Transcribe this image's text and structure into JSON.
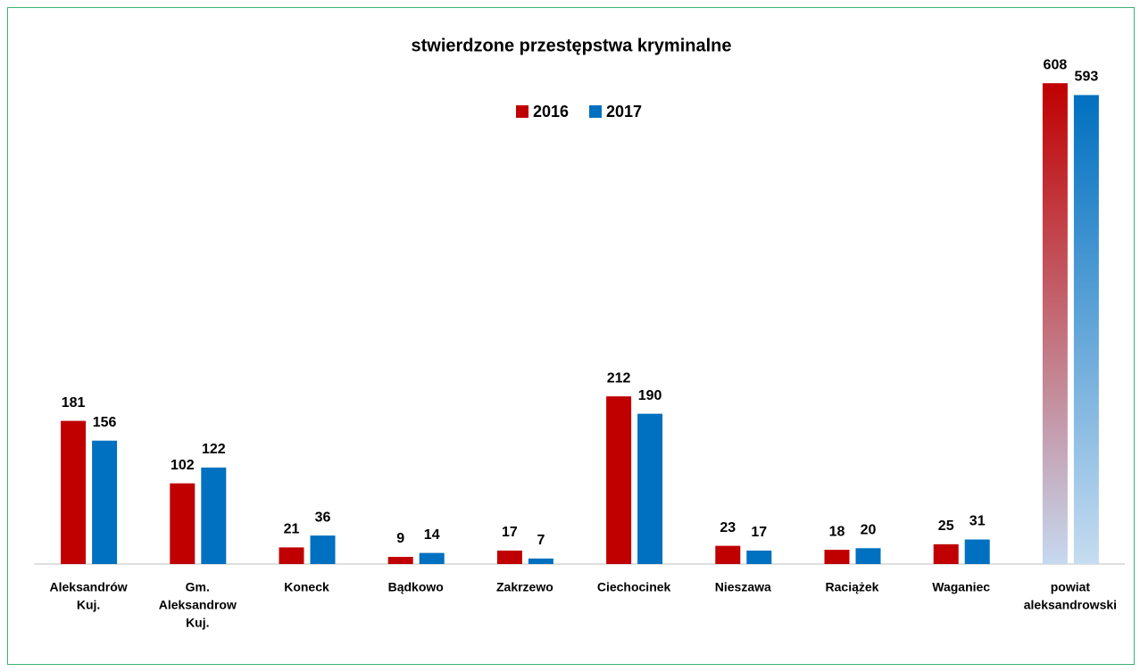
{
  "chart_data": {
    "type": "bar",
    "title": "stwierdzone przestępstwa kryminalne",
    "categories": [
      [
        "Aleksandrów",
        "Kuj."
      ],
      [
        "Gm.",
        "Aleksandrow",
        "Kuj."
      ],
      [
        "Koneck"
      ],
      [
        "Bądkowo"
      ],
      [
        "Zakrzewo"
      ],
      [
        "Ciechocinek"
      ],
      [
        "Nieszawa"
      ],
      [
        "Raciążek"
      ],
      [
        "Waganiec"
      ],
      [
        "powiat",
        "aleksandrowski"
      ]
    ],
    "series": [
      {
        "name": "2016",
        "color": "#c00000",
        "values": [
          181,
          102,
          21,
          9,
          17,
          212,
          23,
          18,
          25,
          608
        ]
      },
      {
        "name": "2017",
        "color": "#0070c0",
        "values": [
          156,
          122,
          36,
          14,
          7,
          190,
          17,
          20,
          31,
          593
        ]
      }
    ],
    "ylim": [
      0,
      650
    ],
    "legend": "top"
  }
}
